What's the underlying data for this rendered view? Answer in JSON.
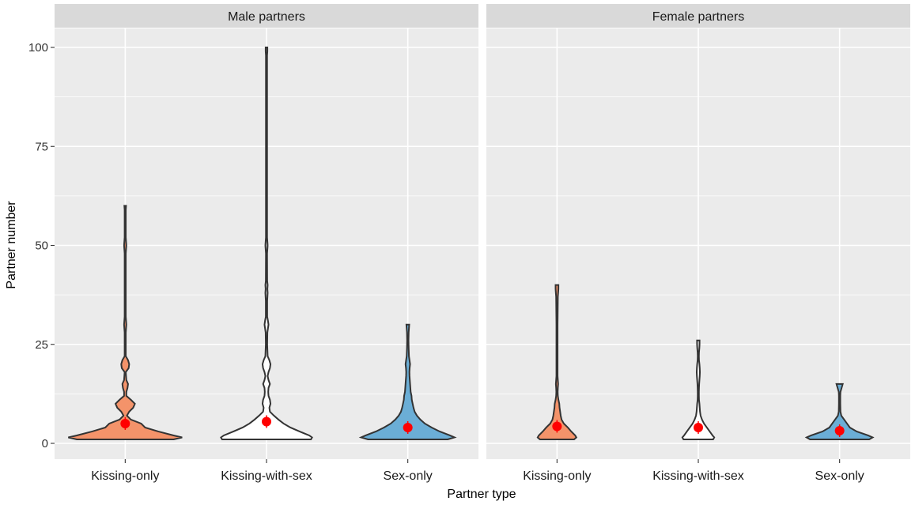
{
  "chart_data": {
    "type": "violin",
    "xlabel": "Partner type",
    "ylabel": "Partner number",
    "ylim": [
      -4,
      105
    ],
    "y_ticks": [
      0,
      25,
      50,
      75,
      100
    ],
    "categories": [
      "Kissing-only",
      "Kissing-with-sex",
      "Sex-only"
    ],
    "colors": {
      "Kissing-only": "#f4936a",
      "Kissing-with-sex": "#ffffff",
      "Sex-only": "#6baed6"
    },
    "panels": [
      {
        "title": "Male partners",
        "groups": [
          {
            "category": "Kissing-only",
            "mean": 5.0,
            "profile": [
              [
                1,
                0.85
              ],
              [
                1.5,
                1.0
              ],
              [
                2,
                0.85
              ],
              [
                3,
                0.58
              ],
              [
                4,
                0.35
              ],
              [
                5,
                0.28
              ],
              [
                6,
                0.1
              ],
              [
                7,
                0.03
              ],
              [
                8,
                0.07
              ],
              [
                9,
                0.14
              ],
              [
                10,
                0.17
              ],
              [
                11,
                0.1
              ],
              [
                12,
                0.02
              ],
              [
                13,
                0.02
              ],
              [
                14,
                0.04
              ],
              [
                15,
                0.05
              ],
              [
                16,
                0.02
              ],
              [
                18,
                0.01
              ],
              [
                19,
                0.06
              ],
              [
                20,
                0.07
              ],
              [
                21,
                0.05
              ],
              [
                22,
                0.01
              ],
              [
                28,
                0.01
              ],
              [
                29,
                0.015
              ],
              [
                30,
                0.02
              ],
              [
                31,
                0.015
              ],
              [
                32,
                0.01
              ],
              [
                48,
                0.01
              ],
              [
                49,
                0.015
              ],
              [
                50,
                0.02
              ],
              [
                51,
                0.015
              ],
              [
                52,
                0.01
              ],
              [
                59,
                0.01
              ],
              [
                60,
                0.015
              ]
            ]
          },
          {
            "category": "Kissing-with-sex",
            "mean": 5.5,
            "profile": [
              [
                1,
                0.78
              ],
              [
                1.5,
                0.8
              ],
              [
                2,
                0.75
              ],
              [
                3,
                0.58
              ],
              [
                4,
                0.42
              ],
              [
                5,
                0.3
              ],
              [
                6,
                0.21
              ],
              [
                7,
                0.13
              ],
              [
                8,
                0.06
              ],
              [
                9,
                0.05
              ],
              [
                10,
                0.07
              ],
              [
                11,
                0.06
              ],
              [
                12,
                0.035
              ],
              [
                13,
                0.03
              ],
              [
                14,
                0.035
              ],
              [
                15,
                0.06
              ],
              [
                16,
                0.035
              ],
              [
                17,
                0.02
              ],
              [
                18,
                0.035
              ],
              [
                19,
                0.06
              ],
              [
                20,
                0.07
              ],
              [
                21,
                0.05
              ],
              [
                22,
                0.02
              ],
              [
                25,
                0.012
              ],
              [
                28,
                0.015
              ],
              [
                29,
                0.025
              ],
              [
                30,
                0.035
              ],
              [
                31,
                0.025
              ],
              [
                32,
                0.012
              ],
              [
                36,
                0.012
              ],
              [
                38,
                0.02
              ],
              [
                39,
                0.015
              ],
              [
                40,
                0.02
              ],
              [
                41,
                0.012
              ],
              [
                48,
                0.01
              ],
              [
                50,
                0.02
              ],
              [
                52,
                0.01
              ],
              [
                60,
                0.01
              ],
              [
                98,
                0.01
              ],
              [
                99,
                0.015
              ],
              [
                100,
                0.015
              ]
            ]
          },
          {
            "category": "Sex-only",
            "mean": 4.0,
            "profile": [
              [
                1,
                0.7
              ],
              [
                1.5,
                0.82
              ],
              [
                2,
                0.74
              ],
              [
                3,
                0.56
              ],
              [
                4,
                0.42
              ],
              [
                5,
                0.3
              ],
              [
                6,
                0.22
              ],
              [
                7,
                0.16
              ],
              [
                8,
                0.12
              ],
              [
                9,
                0.1
              ],
              [
                10,
                0.085
              ],
              [
                11,
                0.07
              ],
              [
                12,
                0.065
              ],
              [
                13,
                0.05
              ],
              [
                14,
                0.045
              ],
              [
                15,
                0.04
              ],
              [
                16,
                0.035
              ],
              [
                17,
                0.03
              ],
              [
                18,
                0.028
              ],
              [
                19,
                0.032
              ],
              [
                20,
                0.04
              ],
              [
                21,
                0.03
              ],
              [
                22,
                0.02
              ],
              [
                24,
                0.015
              ],
              [
                26,
                0.012
              ],
              [
                28,
                0.015
              ],
              [
                29,
                0.02
              ],
              [
                30,
                0.025
              ]
            ]
          }
        ]
      },
      {
        "title": "Female partners",
        "groups": [
          {
            "category": "Kissing-only",
            "mean": 4.3,
            "profile": [
              [
                1,
                0.3
              ],
              [
                1.5,
                0.34
              ],
              [
                2,
                0.32
              ],
              [
                3,
                0.25
              ],
              [
                4,
                0.19
              ],
              [
                5,
                0.12
              ],
              [
                6,
                0.08
              ],
              [
                7,
                0.065
              ],
              [
                8,
                0.055
              ],
              [
                9,
                0.045
              ],
              [
                10,
                0.04
              ],
              [
                11,
                0.025
              ],
              [
                12,
                0.015
              ],
              [
                13,
                0.012
              ],
              [
                14,
                0.015
              ],
              [
                15,
                0.02
              ],
              [
                16,
                0.015
              ],
              [
                17,
                0.01
              ],
              [
                20,
                0.01
              ],
              [
                30,
                0.01
              ],
              [
                37,
                0.015
              ],
              [
                38,
                0.02
              ],
              [
                39,
                0.025
              ],
              [
                40,
                0.025
              ]
            ]
          },
          {
            "category": "Kissing-with-sex",
            "mean": 4.0,
            "profile": [
              [
                1,
                0.26
              ],
              [
                1.5,
                0.28
              ],
              [
                2,
                0.25
              ],
              [
                3,
                0.2
              ],
              [
                4,
                0.15
              ],
              [
                5,
                0.1
              ],
              [
                6,
                0.065
              ],
              [
                7,
                0.04
              ],
              [
                8,
                0.03
              ],
              [
                9,
                0.025
              ],
              [
                10,
                0.02
              ],
              [
                11,
                0.012
              ],
              [
                12,
                0.01
              ],
              [
                13,
                0.01
              ],
              [
                14,
                0.012
              ],
              [
                15,
                0.015
              ],
              [
                16,
                0.02
              ],
              [
                17,
                0.025
              ],
              [
                18,
                0.028
              ],
              [
                19,
                0.025
              ],
              [
                20,
                0.02
              ],
              [
                21,
                0.012
              ],
              [
                22,
                0.01
              ],
              [
                23,
                0.012
              ],
              [
                24,
                0.018
              ],
              [
                25,
                0.022
              ],
              [
                26,
                0.022
              ]
            ]
          },
          {
            "category": "Sex-only",
            "mean": 3.2,
            "profile": [
              [
                1,
                0.52
              ],
              [
                1.5,
                0.58
              ],
              [
                2,
                0.5
              ],
              [
                3,
                0.3
              ],
              [
                4,
                0.18
              ],
              [
                5,
                0.13
              ],
              [
                6,
                0.08
              ],
              [
                7,
                0.03
              ],
              [
                8,
                0.015
              ],
              [
                10,
                0.012
              ],
              [
                12,
                0.012
              ],
              [
                13,
                0.015
              ],
              [
                14,
                0.035
              ],
              [
                15,
                0.055
              ]
            ]
          }
        ]
      }
    ]
  }
}
